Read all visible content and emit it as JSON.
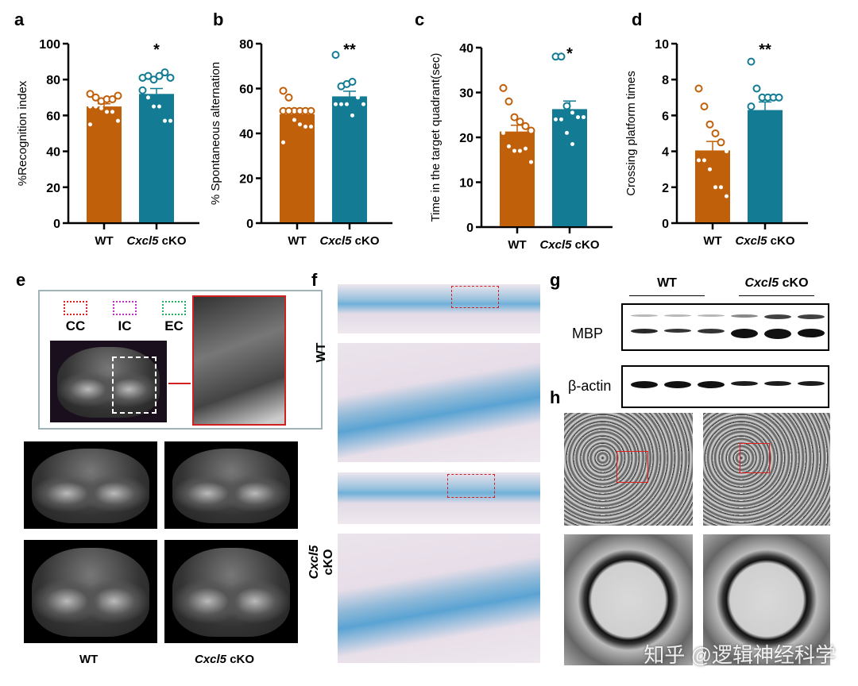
{
  "colors": {
    "wt": "#c0600a",
    "cko": "#137b93",
    "point_fill": "#ffffff"
  },
  "chart_data": [
    {
      "panel": "a",
      "type": "bar",
      "categories": [
        "WT",
        "Cxcl5 cKO"
      ],
      "ylabel": "%Recognition index",
      "ylim": [
        0,
        100
      ],
      "yticks": [
        0,
        20,
        40,
        60,
        80,
        100
      ],
      "means": [
        65,
        72
      ],
      "sem": [
        1.5,
        3
      ],
      "significance": "*",
      "points": [
        [
          72,
          70,
          68,
          69,
          69,
          71,
          65,
          65,
          64,
          62,
          62,
          57,
          55
        ],
        [
          81,
          82,
          80,
          82,
          84,
          81,
          74,
          70,
          65,
          65,
          57,
          57
        ]
      ]
    },
    {
      "panel": "b",
      "type": "bar",
      "categories": [
        "WT",
        "Cxcl5 cKO"
      ],
      "ylabel": "% Spontaneous alternation",
      "ylim": [
        0,
        80
      ],
      "yticks": [
        0,
        20,
        40,
        60,
        80
      ],
      "means": [
        48.5,
        56.5
      ],
      "sem": [
        1.8,
        2.3
      ],
      "significance": "**",
      "points": [
        [
          59,
          56,
          50,
          50,
          50,
          50,
          50,
          50,
          46,
          44,
          43,
          43,
          36
        ],
        [
          75,
          61,
          62,
          63,
          56,
          53,
          53,
          53,
          53,
          48
        ]
      ]
    },
    {
      "panel": "c",
      "type": "bar",
      "categories": [
        "WT",
        "Cxcl5 cKO"
      ],
      "ylabel": "Time in the target quadrant(sec)",
      "ylim": [
        0,
        40
      ],
      "yticks": [
        0,
        10,
        20,
        30,
        40
      ],
      "means": [
        21.3,
        26.3
      ],
      "sem": [
        1.4,
        1.8
      ],
      "significance": "*",
      "points": [
        [
          31,
          28,
          24.5,
          23.5,
          22.5,
          21.5,
          21,
          18,
          17,
          17,
          17.5,
          14.5
        ],
        [
          38,
          38,
          27,
          25.5,
          24.5,
          24.5,
          24,
          24,
          21,
          18.5
        ]
      ]
    },
    {
      "panel": "d",
      "type": "bar",
      "categories": [
        "WT",
        "Cxcl5 cKO"
      ],
      "ylabel": "Crossing platform times",
      "ylim": [
        0,
        10
      ],
      "yticks": [
        0,
        2,
        4,
        6,
        8,
        10
      ],
      "means": [
        4.05,
        6.3
      ],
      "sem": [
        0.5,
        0.45
      ],
      "significance": "**",
      "points": [
        [
          7.5,
          6.5,
          5.5,
          5,
          4.5,
          4,
          3.5,
          3.5,
          3,
          2,
          2,
          1.5
        ],
        [
          9,
          7.5,
          7,
          7,
          7,
          7,
          6.5
        ]
      ]
    }
  ],
  "panels": {
    "a": "a",
    "b": "b",
    "c": "c",
    "d": "d",
    "e": "e",
    "f": "f",
    "g": "g",
    "h": "h"
  },
  "x_labels": {
    "wt": "WT",
    "cko_gene": "Cxcl5",
    "cko_suffix": " cKO"
  },
  "e": {
    "legend": [
      "CC",
      "IC",
      "EC"
    ],
    "legend_colors": [
      "#e02020",
      "#c030c0",
      "#20b060"
    ]
  },
  "g": {
    "group_wt": "WT",
    "group_cko_gene": "Cxcl5",
    "group_cko_suffix": " cKO",
    "mbp": "MBP",
    "actin": "β-actin"
  },
  "watermark": "知乎 @逻辑神经科学"
}
